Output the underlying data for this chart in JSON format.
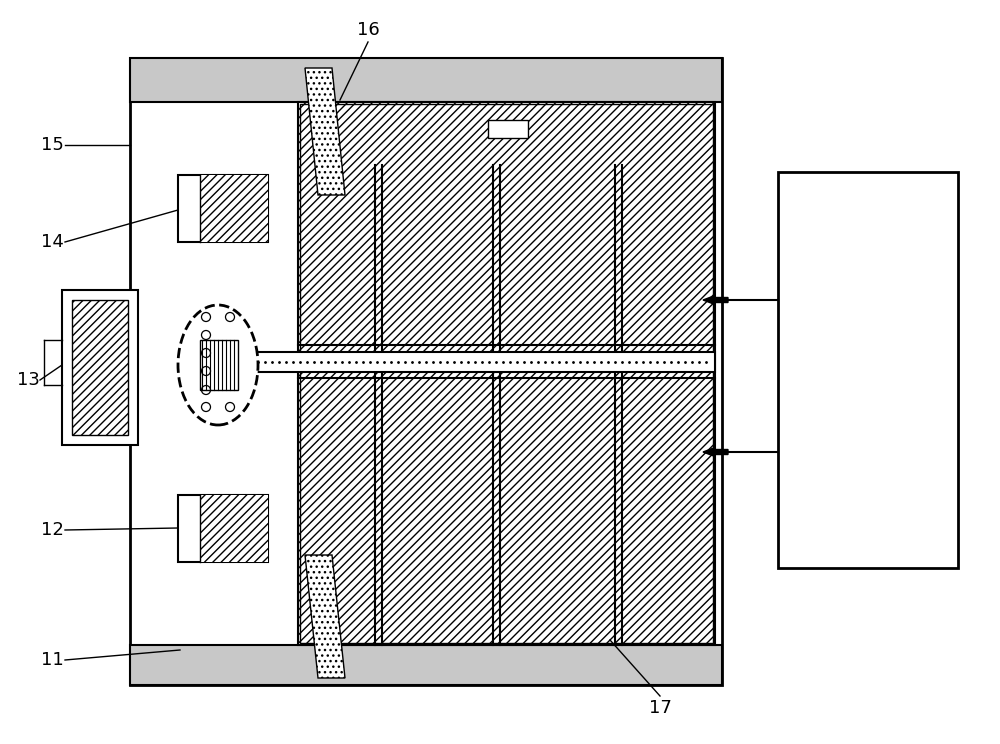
{
  "bg_color": "#ffffff",
  "line_color": "#000000",
  "label_fontsize": 13,
  "lw_thick": 2.0,
  "lw_med": 1.5,
  "lw_thin": 1.0
}
